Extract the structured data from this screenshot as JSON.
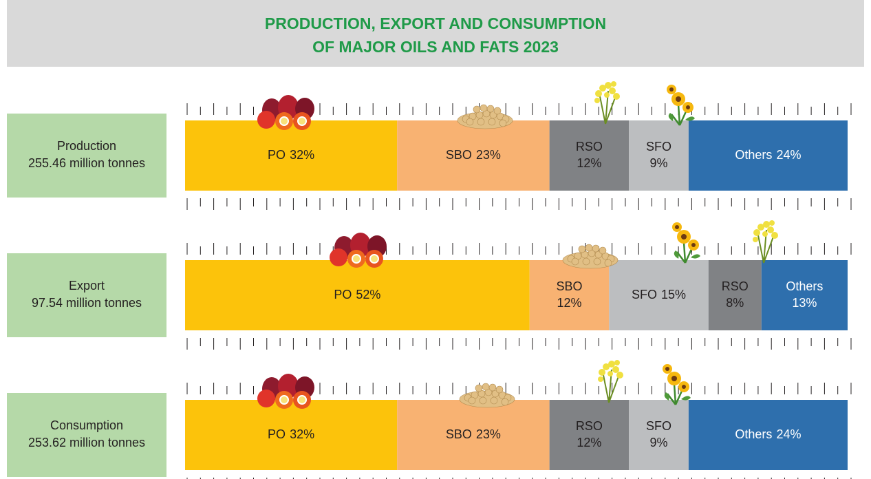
{
  "title_lines": [
    "PRODUCTION, EXPORT AND CONSUMPTION",
    "OF MAJOR OILS AND FATS 2023"
  ],
  "chart_data": [
    {
      "type": "stacked-bar",
      "label": "Production",
      "total": {
        "value": 255.46,
        "label": "255.46 million tonnes"
      },
      "xlim": [
        0,
        100
      ],
      "series": [
        {
          "name": "PO",
          "color": "#fcc30b",
          "values": [
            32
          ],
          "value_labels": [
            "32%"
          ]
        },
        {
          "name": "SBO",
          "color": "#f8b272",
          "values": [
            23
          ],
          "value_labels": [
            "23%"
          ]
        },
        {
          "name": "RSO",
          "color": "#808285",
          "values": [
            12
          ],
          "value_labels": [
            "12%"
          ]
        },
        {
          "name": "SFO",
          "color": "#bcbec0",
          "values": [
            9
          ],
          "value_labels": [
            "9%"
          ]
        },
        {
          "name": "Others",
          "color": "#2e6fad",
          "values": [
            24
          ],
          "value_labels": [
            "24%"
          ]
        }
      ]
    },
    {
      "type": "stacked-bar",
      "label": "Export",
      "total": {
        "value": 97.54,
        "label": "97.54 million tonnes"
      },
      "xlim": [
        0,
        100
      ],
      "series": [
        {
          "name": "PO",
          "color": "#fcc30b",
          "values": [
            52
          ],
          "value_labels": [
            "52%"
          ]
        },
        {
          "name": "SBO",
          "color": "#f8b272",
          "values": [
            12
          ],
          "value_labels": [
            "12%"
          ]
        },
        {
          "name": "SFO",
          "color": "#bcbec0",
          "values": [
            15
          ],
          "value_labels": [
            "15%"
          ]
        },
        {
          "name": "RSO",
          "color": "#808285",
          "values": [
            8
          ],
          "value_labels": [
            "8%"
          ]
        },
        {
          "name": "Others",
          "color": "#2e6fad",
          "values": [
            13
          ],
          "value_labels": [
            "13%"
          ]
        }
      ]
    },
    {
      "type": "stacked-bar",
      "label": "Consumption",
      "total": {
        "value": 253.62,
        "label": "253.62 million tonnes"
      },
      "xlim": [
        0,
        100
      ],
      "series": [
        {
          "name": "PO",
          "color": "#fcc30b",
          "values": [
            32
          ],
          "value_labels": [
            "32%"
          ]
        },
        {
          "name": "SBO",
          "color": "#f8b272",
          "values": [
            23
          ],
          "value_labels": [
            "23%"
          ]
        },
        {
          "name": "RSO",
          "color": "#808285",
          "values": [
            12
          ],
          "value_labels": [
            "12%"
          ]
        },
        {
          "name": "SFO",
          "color": "#bcbec0",
          "values": [
            9
          ],
          "value_labels": [
            "9%"
          ]
        },
        {
          "name": "Others",
          "color": "#2e6fad",
          "values": [
            24
          ],
          "value_labels": [
            "24%"
          ]
        }
      ]
    }
  ]
}
